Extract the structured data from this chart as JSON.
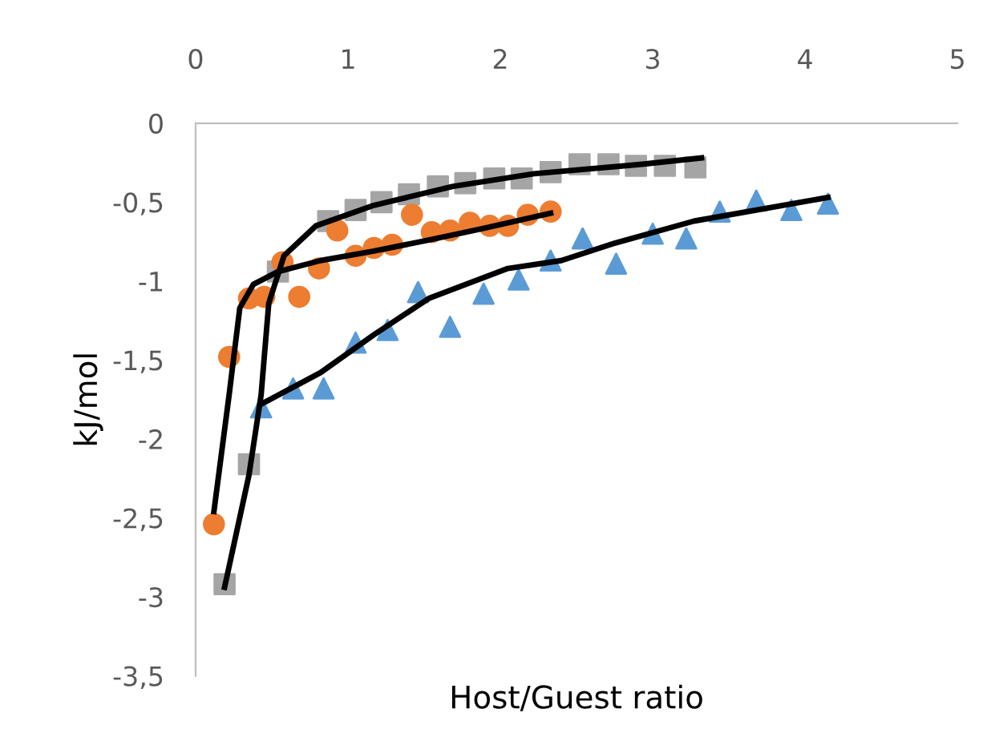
{
  "chart_data": {
    "type": "scatter",
    "xlabel": "Host/Guest ratio",
    "ylabel": "kJ/mol",
    "xlim": [
      0,
      5
    ],
    "ylim": [
      -3.5,
      0
    ],
    "xticks": [
      0,
      1,
      2,
      3,
      4,
      5
    ],
    "yticks": [
      0,
      {
        "value": -0.5,
        "label": "-0,5"
      },
      -1,
      {
        "value": -1.5,
        "label": "-1,5"
      },
      -2,
      {
        "value": -2.5,
        "label": "-2,5"
      },
      -3,
      {
        "value": -3.5,
        "label": "-3,5"
      }
    ],
    "grid": false,
    "legend": false,
    "series": [
      {
        "marker": "square",
        "color": "#a5a5a5",
        "x": [
          0.19,
          0.35,
          0.54,
          0.87,
          1.05,
          1.22,
          1.4,
          1.59,
          1.77,
          1.96,
          2.14,
          2.33,
          2.52,
          2.71,
          2.89,
          3.08,
          3.28
        ],
        "values": [
          -2.92,
          -2.16,
          -0.94,
          -0.62,
          -0.55,
          -0.5,
          -0.45,
          -0.4,
          -0.38,
          -0.35,
          -0.35,
          -0.31,
          -0.26,
          -0.26,
          -0.27,
          -0.27,
          -0.28
        ]
      },
      {
        "marker": "circle",
        "color": "#ed7d31",
        "x": [
          0.12,
          0.22,
          0.35,
          0.45,
          0.68,
          0.57,
          0.81,
          0.93,
          1.05,
          1.17,
          1.29,
          1.42,
          1.55,
          1.67,
          1.8,
          1.93,
          2.05,
          2.18,
          2.33
        ],
        "values": [
          -2.54,
          -1.48,
          -1.11,
          -1.1,
          -1.1,
          -0.88,
          -0.92,
          -0.68,
          -0.84,
          -0.79,
          -0.77,
          -0.58,
          -0.69,
          -0.68,
          -0.63,
          -0.65,
          -0.65,
          -0.58,
          -0.56
        ]
      },
      {
        "marker": "triangle",
        "color": "#5b9bd5",
        "x": [
          0.43,
          0.64,
          0.84,
          1.05,
          1.26,
          1.46,
          1.67,
          1.89,
          2.12,
          2.33,
          2.54,
          2.76,
          3.0,
          3.22,
          3.44,
          3.68,
          3.91,
          4.15
        ],
        "values": [
          -1.8,
          -1.68,
          -1.68,
          -1.39,
          -1.31,
          -1.07,
          -1.29,
          -1.08,
          -0.99,
          -0.87,
          -0.73,
          -0.89,
          -0.7,
          -0.73,
          -0.56,
          -0.49,
          -0.55,
          -0.51
        ]
      },
      {
        "type": "line",
        "marker": "none",
        "line_style": "solid",
        "color": "#000000",
        "x": [
          0.19,
          0.35,
          0.43,
          0.48,
          0.58,
          0.79,
          1.17,
          1.69,
          2.22,
          2.93,
          3.32
        ],
        "values": [
          -2.94,
          -2.23,
          -1.72,
          -1.14,
          -0.84,
          -0.65,
          -0.52,
          -0.4,
          -0.32,
          -0.26,
          -0.22
        ]
      },
      {
        "type": "line",
        "marker": "none",
        "line_style": "solid",
        "color": "#000000",
        "x": [
          0.12,
          0.22,
          0.29,
          0.38,
          0.54,
          0.82,
          1.17,
          1.53,
          1.87,
          2.33
        ],
        "values": [
          -2.46,
          -1.72,
          -1.17,
          -1.02,
          -0.94,
          -0.87,
          -0.81,
          -0.74,
          -0.67,
          -0.57
        ]
      },
      {
        "type": "line",
        "marker": "none",
        "line_style": "solid",
        "color": "#000000",
        "x": [
          0.43,
          0.82,
          1.17,
          1.53,
          2.05,
          2.4,
          2.75,
          3.27,
          4.15
        ],
        "values": [
          -1.78,
          -1.58,
          -1.34,
          -1.11,
          -0.92,
          -0.87,
          -0.76,
          -0.62,
          -0.47
        ]
      }
    ]
  }
}
